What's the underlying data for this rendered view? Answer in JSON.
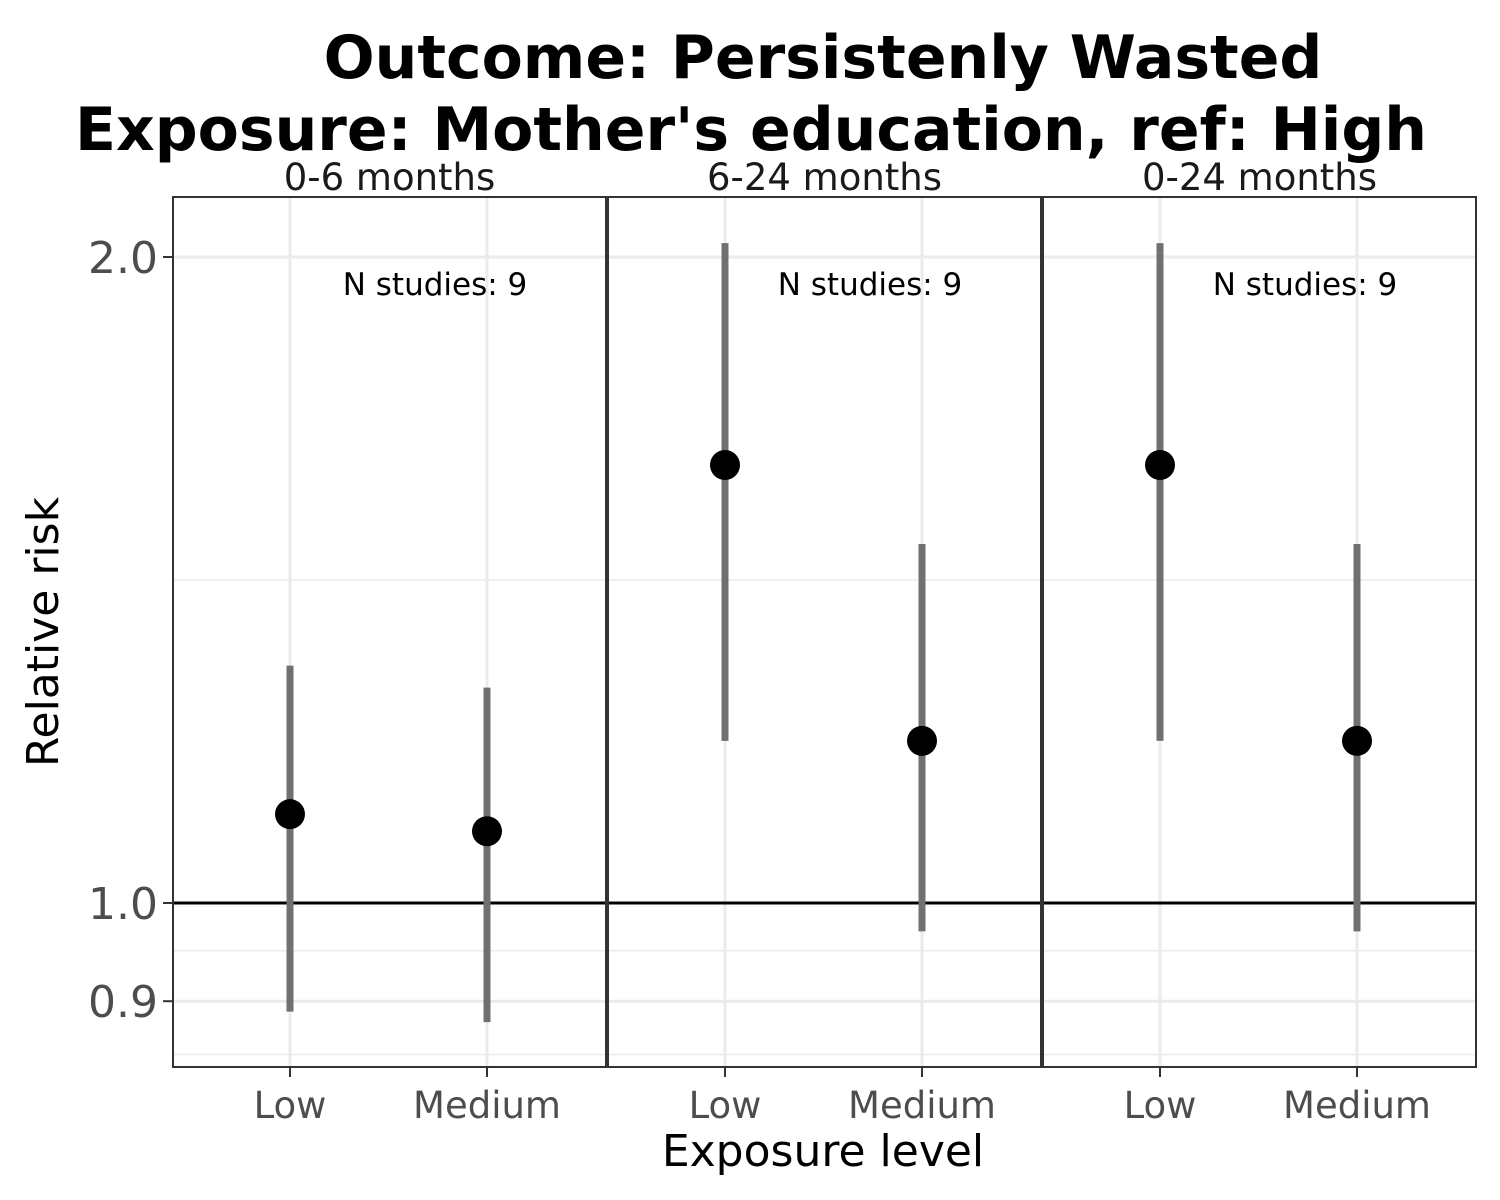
{
  "chart_data": {
    "type": "scatter",
    "title_line1": "Outcome: Persistenly Wasted",
    "title_line2": "Exposure: Mother's education, ref: High",
    "xlabel": "Exposure level",
    "ylabel": "Relative risk",
    "y_scale": "log",
    "ylim": [
      0.83,
      2.1
    ],
    "y_ticks": [
      {
        "value": 0.9,
        "label": "0.9"
      },
      {
        "value": 1.0,
        "label": "1.0"
      },
      {
        "value": 2.0,
        "label": "2.0"
      }
    ],
    "reference_line": 1.0,
    "categories": [
      "Low",
      "Medium"
    ],
    "panels": [
      {
        "label": "0-6 months",
        "annotation": "N studies: 9",
        "points": [
          {
            "category": "Low",
            "estimate": 1.1,
            "lower": 0.89,
            "upper": 1.29
          },
          {
            "category": "Medium",
            "estimate": 1.08,
            "lower": 0.88,
            "upper": 1.26
          }
        ]
      },
      {
        "label": "6-24 months",
        "annotation": "N studies: 9",
        "points": [
          {
            "category": "Low",
            "estimate": 1.6,
            "lower": 1.19,
            "upper": 2.03
          },
          {
            "category": "Medium",
            "estimate": 1.19,
            "lower": 0.97,
            "upper": 1.47
          }
        ]
      },
      {
        "label": "0-24 months",
        "annotation": "N studies: 9",
        "points": [
          {
            "category": "Low",
            "estimate": 1.6,
            "lower": 1.19,
            "upper": 2.03
          },
          {
            "category": "Medium",
            "estimate": 1.19,
            "lower": 0.97,
            "upper": 1.47
          }
        ]
      }
    ],
    "colors": {
      "point": "#000000",
      "error_bar": "#707070",
      "grid": "#ebebeb",
      "panel_border": "#333333",
      "reference_line": "#000000"
    },
    "grid": true,
    "legend": "none"
  }
}
